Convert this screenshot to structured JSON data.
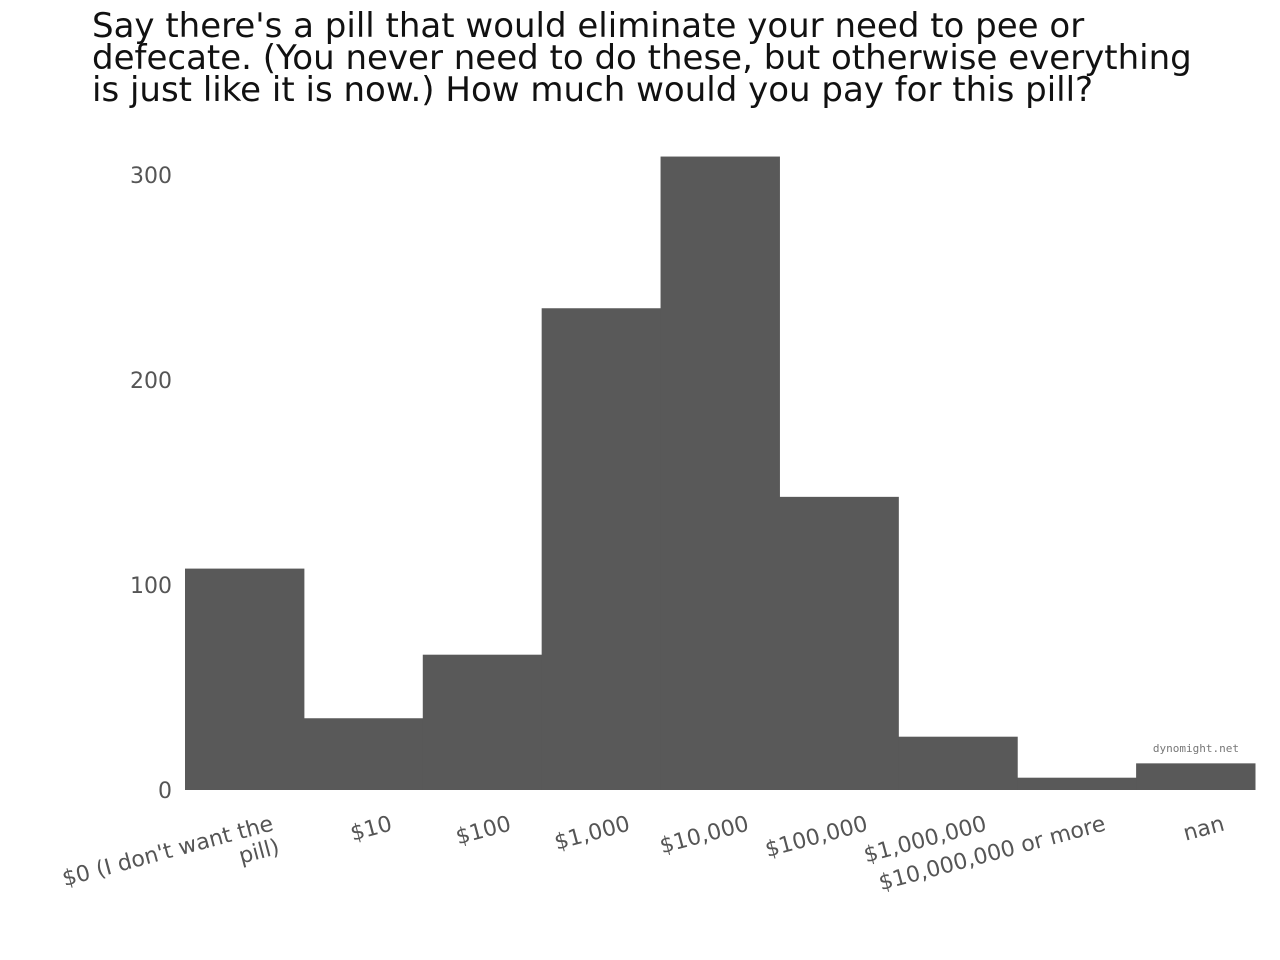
{
  "chart_data": {
    "type": "bar",
    "title_lines": [
      "Say there's a pill that would eliminate your need to pee or",
      "defecate. (You never need to do these, but otherwise everything",
      "is just like it is now.) How much would you pay for this pill?"
    ],
    "categories": [
      "$0 (I don't want the pill)",
      "$10",
      "$100",
      "$1,000",
      "$10,000",
      "$100,000",
      "$1,000,000",
      "$10,000,000 or more",
      "nan"
    ],
    "values": [
      108,
      35,
      66,
      235,
      309,
      143,
      26,
      6,
      13
    ],
    "ylim": [
      0,
      310
    ],
    "yticks": [
      0,
      100,
      200,
      300
    ],
    "grid": false,
    "bar_color": "#595959",
    "credit": "dynomight.net"
  }
}
